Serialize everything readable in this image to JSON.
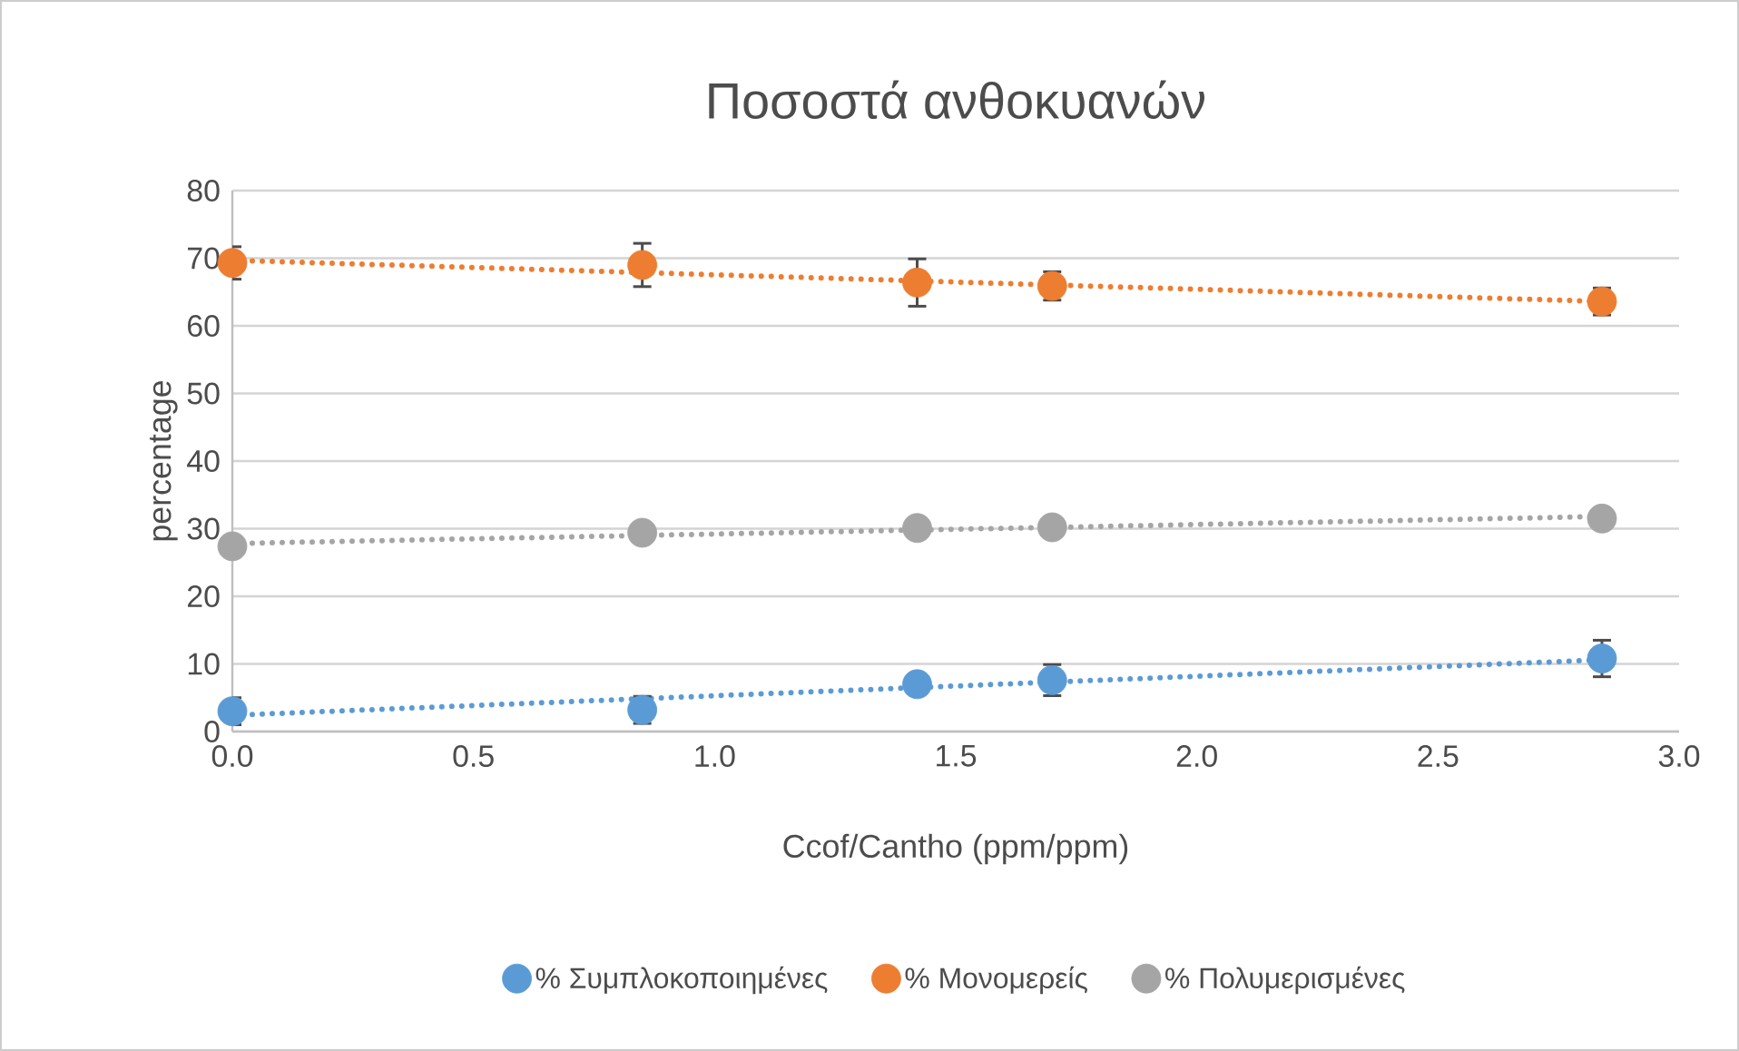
{
  "chart_data": {
    "type": "scatter",
    "title": "Ποσοστά ανθοκυανών",
    "xlabel": "Ccof/Cantho (ppm/ppm)",
    "ylabel": "percentage",
    "xlim": [
      0,
      3
    ],
    "xticks": [
      {
        "value": 0,
        "label": "0.0"
      },
      {
        "value": 0.5,
        "label": "0.5"
      },
      {
        "value": 1,
        "label": "1.0"
      },
      {
        "value": 1.5,
        "label": "1.5"
      },
      {
        "value": 2,
        "label": "2.0"
      },
      {
        "value": 2.5,
        "label": "2.5"
      },
      {
        "value": 3,
        "label": "3.0"
      }
    ],
    "ylim": [
      0,
      80
    ],
    "yticks": [
      0,
      10,
      20,
      30,
      40,
      50,
      60,
      70,
      80
    ],
    "grid": "y",
    "legend": "bottom",
    "series": [
      {
        "name": "% Συμπλοκοποιημένες",
        "color": "#5b9bd5",
        "x": [
          0,
          0.85,
          1.42,
          1.7,
          2.84
        ],
        "values": [
          3.0,
          3.2,
          7.0,
          7.6,
          10.8
        ],
        "marker": "circle",
        "errors": [
          2.0,
          2.0,
          null,
          2.3,
          2.7
        ]
      },
      {
        "name": "% Μονομερείς",
        "color": "#ed7d31",
        "x": [
          0,
          0.85,
          1.42,
          1.7,
          2.84
        ],
        "values": [
          69.3,
          69.0,
          66.4,
          65.9,
          63.6
        ],
        "marker": "circle",
        "errors": [
          2.4,
          3.2,
          3.5,
          2.1,
          2.0
        ]
      },
      {
        "name": "% Πολυμερισμένες",
        "color": "#a5a5a5",
        "x": [
          0,
          0.85,
          1.42,
          1.7,
          2.84
        ],
        "values": [
          27.4,
          29.4,
          30.1,
          30.2,
          31.5
        ],
        "marker": "circle"
      },
      {
        "type": "line",
        "color": "#5b9bd5",
        "line_style": "dotted",
        "x": [
          0,
          2.84
        ],
        "values": [
          2.4,
          10.6
        ]
      },
      {
        "type": "line",
        "color": "#ed7d31",
        "line_style": "dotted",
        "x": [
          0,
          2.84
        ],
        "values": [
          69.7,
          63.6
        ]
      },
      {
        "type": "line",
        "color": "#a5a5a5",
        "line_style": "dotted",
        "x": [
          0,
          2.84
        ],
        "values": [
          27.8,
          31.8
        ]
      }
    ]
  }
}
